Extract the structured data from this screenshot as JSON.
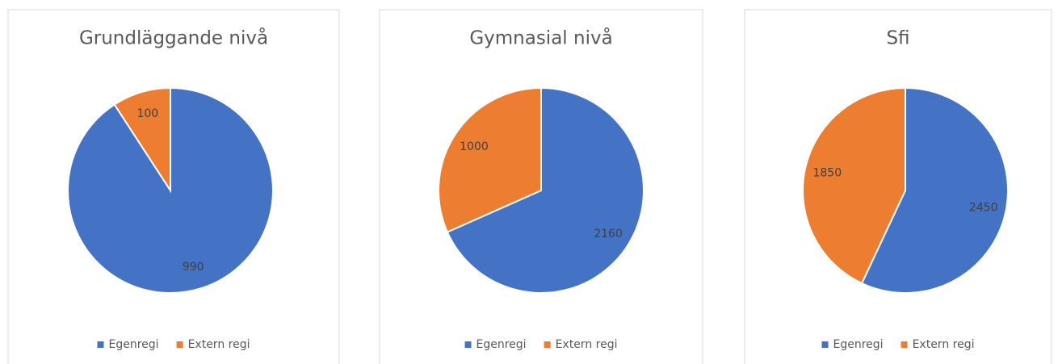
{
  "chart_data": [
    {
      "type": "pie",
      "title": "Grundläggande nivå",
      "categories": [
        "Egenregi",
        "Extern regi"
      ],
      "values": [
        990,
        100
      ],
      "colors": [
        "#4472c4",
        "#ed7d31"
      ],
      "legend": "bottom"
    },
    {
      "type": "pie",
      "title": "Gymnasial nivå",
      "categories": [
        "Egenregi",
        "Extern regi"
      ],
      "values": [
        2160,
        1000
      ],
      "colors": [
        "#4472c4",
        "#ed7d31"
      ],
      "legend": "bottom"
    },
    {
      "type": "pie",
      "title": "Sfi",
      "categories": [
        "Egenregi",
        "Extern regi"
      ],
      "values": [
        2450,
        1850
      ],
      "colors": [
        "#4472c4",
        "#ed7d31"
      ],
      "legend": "bottom"
    }
  ]
}
